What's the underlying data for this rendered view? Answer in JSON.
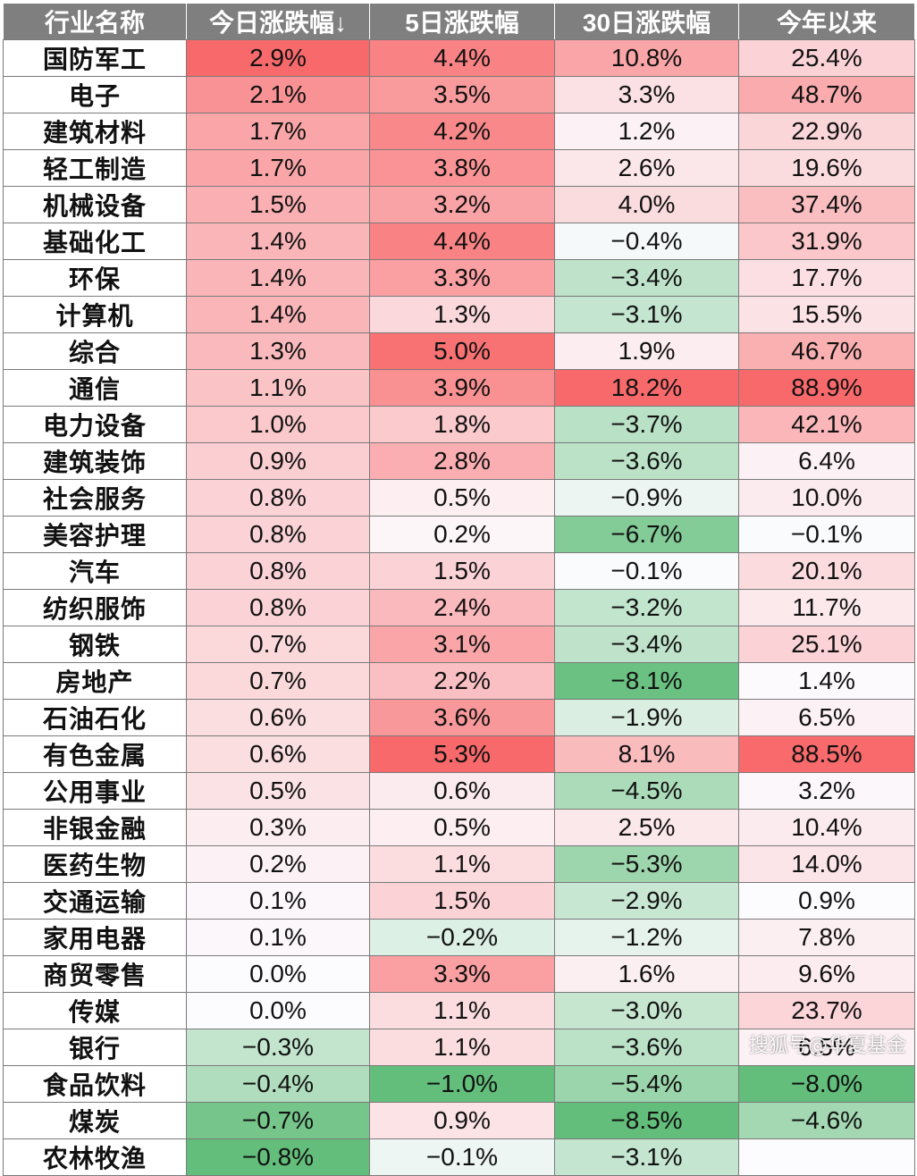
{
  "chart_data": {
    "type": "table",
    "columns": [
      "行业名称",
      "今日涨跌幅↓",
      "5日涨跌幅",
      "30日涨跌幅",
      "今年以来"
    ],
    "rows": [
      [
        "国防军工",
        "2.9%",
        "4.4%",
        "10.8%",
        "25.4%"
      ],
      [
        "电子",
        "2.1%",
        "3.5%",
        "3.3%",
        "48.7%"
      ],
      [
        "建筑材料",
        "1.7%",
        "4.2%",
        "1.2%",
        "22.9%"
      ],
      [
        "轻工制造",
        "1.7%",
        "3.8%",
        "2.6%",
        "19.6%"
      ],
      [
        "机械设备",
        "1.5%",
        "3.2%",
        "4.0%",
        "37.4%"
      ],
      [
        "基础化工",
        "1.4%",
        "4.4%",
        "−0.4%",
        "31.9%"
      ],
      [
        "环保",
        "1.4%",
        "3.3%",
        "−3.4%",
        "17.7%"
      ],
      [
        "计算机",
        "1.4%",
        "1.3%",
        "−3.1%",
        "15.5%"
      ],
      [
        "综合",
        "1.3%",
        "5.0%",
        "1.9%",
        "46.7%"
      ],
      [
        "通信",
        "1.1%",
        "3.9%",
        "18.2%",
        "88.9%"
      ],
      [
        "电力设备",
        "1.0%",
        "1.8%",
        "−3.7%",
        "42.1%"
      ],
      [
        "建筑装饰",
        "0.9%",
        "2.8%",
        "−3.6%",
        "6.4%"
      ],
      [
        "社会服务",
        "0.8%",
        "0.5%",
        "−0.9%",
        "10.0%"
      ],
      [
        "美容护理",
        "0.8%",
        "0.2%",
        "−6.7%",
        "−0.1%"
      ],
      [
        "汽车",
        "0.8%",
        "1.5%",
        "−0.1%",
        "20.1%"
      ],
      [
        "纺织服饰",
        "0.8%",
        "2.4%",
        "−3.2%",
        "11.7%"
      ],
      [
        "钢铁",
        "0.7%",
        "3.1%",
        "−3.4%",
        "25.1%"
      ],
      [
        "房地产",
        "0.7%",
        "2.2%",
        "−8.1%",
        "1.4%"
      ],
      [
        "石油石化",
        "0.6%",
        "3.6%",
        "−1.9%",
        "6.5%"
      ],
      [
        "有色金属",
        "0.6%",
        "5.3%",
        "8.1%",
        "88.5%"
      ],
      [
        "公用事业",
        "0.5%",
        "0.6%",
        "−4.5%",
        "3.2%"
      ],
      [
        "非银金融",
        "0.3%",
        "0.5%",
        "2.5%",
        "10.4%"
      ],
      [
        "医药生物",
        "0.2%",
        "1.1%",
        "−5.3%",
        "14.0%"
      ],
      [
        "交通运输",
        "0.1%",
        "1.5%",
        "−2.9%",
        "0.9%"
      ],
      [
        "家用电器",
        "0.1%",
        "−0.2%",
        "−1.2%",
        "7.8%"
      ],
      [
        "商贸零售",
        "0.0%",
        "3.3%",
        "1.6%",
        "9.6%"
      ],
      [
        "传媒",
        "0.0%",
        "1.1%",
        "−3.0%",
        "23.7%"
      ],
      [
        "银行",
        "−0.3%",
        "1.1%",
        "−3.6%",
        "6.5%"
      ],
      [
        "食品饮料",
        "−0.4%",
        "−1.0%",
        "−5.4%",
        "−8.0%"
      ],
      [
        "煤炭",
        "−0.7%",
        "0.9%",
        "−8.5%",
        "−4.6%"
      ],
      [
        "农林牧渔",
        "−0.8%",
        "−0.1%",
        "−3.1%",
        ""
      ]
    ],
    "color_scale": {
      "positive_color": "#f8696b",
      "negative_color": "#63be7b",
      "neutral_color": "#fcfcff"
    }
  },
  "watermark": "搜狐号@华夏基金"
}
